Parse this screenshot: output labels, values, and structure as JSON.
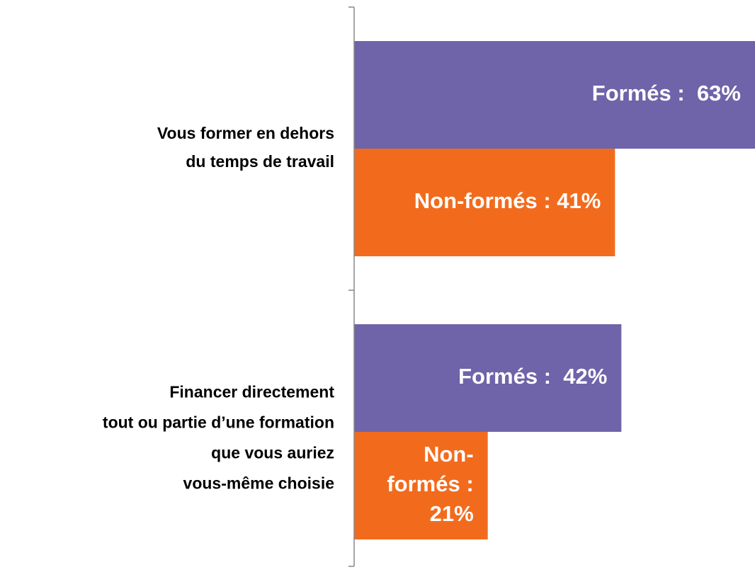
{
  "chart_data": {
    "type": "bar",
    "orientation": "horizontal",
    "categories": [
      "Vous former en dehors\ndu temps de travail",
      "Financer directement\ntout ou partie d’une formation\nque vous auriez\nvous-même choisie"
    ],
    "series": [
      {
        "color": "#6f63a9",
        "values": [
          63,
          42
        ],
        "value_labels": [
          "Formés :  63%",
          "Formés :  42%"
        ]
      },
      {
        "color": "#f26b1d",
        "values": [
          41,
          21
        ],
        "value_labels": [
          "Non-formés : 41%",
          "Non-\nformés :\n21%"
        ]
      }
    ],
    "xlim": [
      0,
      63
    ]
  }
}
